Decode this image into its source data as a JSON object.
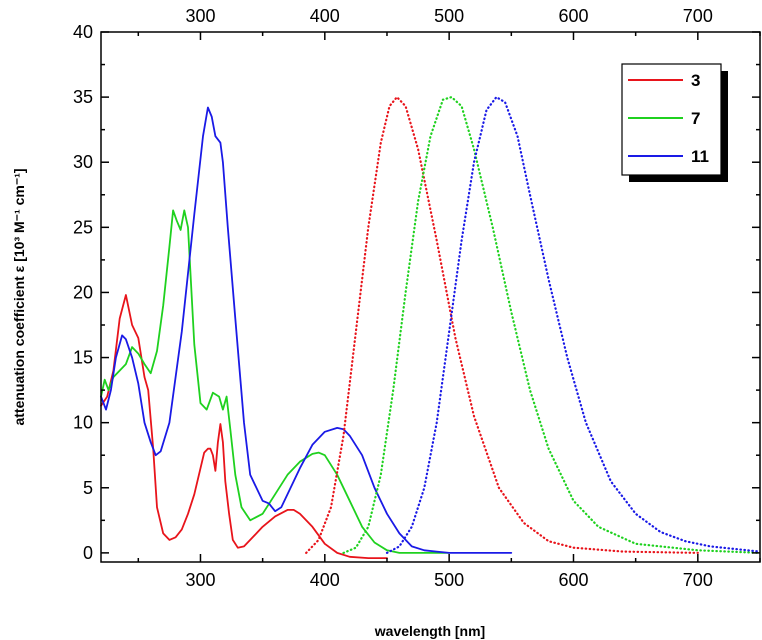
{
  "chart_data": {
    "type": "line",
    "title": "",
    "xlabel": "wavelength [nm]",
    "ylabel": "attenuation coefficient ε [10³ M⁻¹ cm⁻¹]",
    "xlim": [
      220,
      750
    ],
    "ylim": [
      -0.7,
      40
    ],
    "x_ticks": [
      300,
      400,
      500,
      600,
      700
    ],
    "top_x_ticks": [
      300,
      400,
      500,
      600,
      700
    ],
    "y_ticks": [
      0,
      5,
      10,
      15,
      20,
      25,
      30,
      35,
      40
    ],
    "grid": false,
    "legend_position": "top-right",
    "series": [
      {
        "name": "3",
        "kind": "absorption",
        "style": "solid",
        "color": "#e8141b",
        "points": [
          [
            220,
            11.3
          ],
          [
            225,
            12.0
          ],
          [
            230,
            14.0
          ],
          [
            235,
            18.0
          ],
          [
            240,
            19.8
          ],
          [
            245,
            17.5
          ],
          [
            250,
            16.5
          ],
          [
            255,
            13.5
          ],
          [
            258,
            12.5
          ],
          [
            262,
            8.0
          ],
          [
            265,
            3.5
          ],
          [
            270,
            1.5
          ],
          [
            275,
            1.0
          ],
          [
            280,
            1.2
          ],
          [
            285,
            1.8
          ],
          [
            290,
            3.0
          ],
          [
            295,
            4.5
          ],
          [
            300,
            6.5
          ],
          [
            303,
            7.7
          ],
          [
            306,
            8.0
          ],
          [
            308,
            8.0
          ],
          [
            310,
            7.5
          ],
          [
            312,
            6.3
          ],
          [
            314,
            8.5
          ],
          [
            316,
            9.9
          ],
          [
            318,
            8.5
          ],
          [
            320,
            5.5
          ],
          [
            323,
            3.0
          ],
          [
            326,
            1.0
          ],
          [
            330,
            0.4
          ],
          [
            335,
            0.5
          ],
          [
            340,
            1.0
          ],
          [
            350,
            2.0
          ],
          [
            360,
            2.8
          ],
          [
            370,
            3.3
          ],
          [
            375,
            3.3
          ],
          [
            380,
            3.0
          ],
          [
            390,
            2.0
          ],
          [
            400,
            0.7
          ],
          [
            410,
            0.0
          ],
          [
            420,
            -0.3
          ],
          [
            435,
            -0.4
          ],
          [
            450,
            -0.4
          ]
        ]
      },
      {
        "name": "7",
        "kind": "absorption",
        "style": "solid",
        "color": "#1fd11f",
        "points": [
          [
            220,
            12.0
          ],
          [
            223,
            13.3
          ],
          [
            226,
            12.5
          ],
          [
            230,
            13.5
          ],
          [
            240,
            14.5
          ],
          [
            245,
            15.8
          ],
          [
            250,
            15.3
          ],
          [
            255,
            14.5
          ],
          [
            260,
            13.8
          ],
          [
            265,
            15.5
          ],
          [
            270,
            19.0
          ],
          [
            275,
            23.5
          ],
          [
            278,
            26.3
          ],
          [
            281,
            25.5
          ],
          [
            284,
            24.8
          ],
          [
            287,
            26.3
          ],
          [
            290,
            25.0
          ],
          [
            295,
            16.0
          ],
          [
            300,
            11.5
          ],
          [
            305,
            11.0
          ],
          [
            310,
            12.3
          ],
          [
            315,
            12.0
          ],
          [
            318,
            11.0
          ],
          [
            321,
            12.0
          ],
          [
            324,
            9.5
          ],
          [
            328,
            6.0
          ],
          [
            333,
            3.5
          ],
          [
            340,
            2.5
          ],
          [
            350,
            3.0
          ],
          [
            360,
            4.5
          ],
          [
            370,
            6.0
          ],
          [
            380,
            7.0
          ],
          [
            390,
            7.6
          ],
          [
            395,
            7.7
          ],
          [
            400,
            7.5
          ],
          [
            410,
            6.0
          ],
          [
            420,
            4.0
          ],
          [
            430,
            2.0
          ],
          [
            440,
            0.8
          ],
          [
            450,
            0.2
          ],
          [
            460,
            0.0
          ],
          [
            500,
            0.0
          ]
        ]
      },
      {
        "name": "11",
        "kind": "absorption",
        "style": "solid",
        "color": "#1a1ae6",
        "points": [
          [
            220,
            12.0
          ],
          [
            224,
            11.0
          ],
          [
            228,
            12.5
          ],
          [
            232,
            15.0
          ],
          [
            237,
            16.7
          ],
          [
            240,
            16.4
          ],
          [
            245,
            15.0
          ],
          [
            250,
            13.0
          ],
          [
            255,
            10.0
          ],
          [
            260,
            8.5
          ],
          [
            264,
            7.5
          ],
          [
            268,
            7.8
          ],
          [
            275,
            10.0
          ],
          [
            285,
            17.0
          ],
          [
            295,
            26.0
          ],
          [
            302,
            32.0
          ],
          [
            306,
            34.2
          ],
          [
            309,
            33.5
          ],
          [
            312,
            32.0
          ],
          [
            316,
            31.5
          ],
          [
            318,
            30.0
          ],
          [
            322,
            25.0
          ],
          [
            328,
            18.0
          ],
          [
            335,
            10.0
          ],
          [
            340,
            6.0
          ],
          [
            345,
            5.0
          ],
          [
            350,
            4.0
          ],
          [
            355,
            3.8
          ],
          [
            360,
            3.2
          ],
          [
            365,
            3.5
          ],
          [
            370,
            4.5
          ],
          [
            380,
            6.5
          ],
          [
            390,
            8.3
          ],
          [
            400,
            9.3
          ],
          [
            410,
            9.6
          ],
          [
            415,
            9.5
          ],
          [
            420,
            9.0
          ],
          [
            430,
            7.5
          ],
          [
            440,
            5.0
          ],
          [
            450,
            3.0
          ],
          [
            460,
            1.5
          ],
          [
            470,
            0.5
          ],
          [
            480,
            0.2
          ],
          [
            490,
            0.1
          ],
          [
            500,
            0.0
          ],
          [
            550,
            0.0
          ]
        ]
      },
      {
        "name": "3",
        "kind": "emission",
        "style": "dotted",
        "color": "#e8141b",
        "points": [
          [
            385,
            0.0
          ],
          [
            395,
            1.0
          ],
          [
            405,
            3.5
          ],
          [
            415,
            9.0
          ],
          [
            425,
            17.0
          ],
          [
            435,
            25.0
          ],
          [
            445,
            31.5
          ],
          [
            452,
            34.3
          ],
          [
            458,
            35.0
          ],
          [
            465,
            34.3
          ],
          [
            475,
            31.0
          ],
          [
            490,
            24.0
          ],
          [
            505,
            16.5
          ],
          [
            520,
            10.5
          ],
          [
            540,
            5.0
          ],
          [
            560,
            2.3
          ],
          [
            580,
            0.9
          ],
          [
            600,
            0.4
          ],
          [
            640,
            0.1
          ],
          [
            700,
            0.0
          ]
        ]
      },
      {
        "name": "7",
        "kind": "emission",
        "style": "dotted",
        "color": "#1fd11f",
        "points": [
          [
            415,
            0.0
          ],
          [
            425,
            0.4
          ],
          [
            435,
            2.0
          ],
          [
            445,
            6.0
          ],
          [
            455,
            12.5
          ],
          [
            465,
            20.0
          ],
          [
            475,
            27.0
          ],
          [
            485,
            32.0
          ],
          [
            495,
            34.8
          ],
          [
            502,
            35.0
          ],
          [
            510,
            34.3
          ],
          [
            520,
            31.0
          ],
          [
            535,
            25.0
          ],
          [
            550,
            18.5
          ],
          [
            565,
            12.5
          ],
          [
            580,
            8.0
          ],
          [
            600,
            4.0
          ],
          [
            620,
            2.0
          ],
          [
            650,
            0.7
          ],
          [
            700,
            0.2
          ],
          [
            750,
            0.0
          ]
        ]
      },
      {
        "name": "11",
        "kind": "emission",
        "style": "dotted",
        "color": "#1a1ae6",
        "points": [
          [
            450,
            0.0
          ],
          [
            460,
            0.5
          ],
          [
            470,
            2.0
          ],
          [
            480,
            5.0
          ],
          [
            490,
            10.0
          ],
          [
            500,
            17.0
          ],
          [
            510,
            24.0
          ],
          [
            520,
            30.0
          ],
          [
            530,
            34.0
          ],
          [
            538,
            35.0
          ],
          [
            545,
            34.6
          ],
          [
            555,
            32.0
          ],
          [
            565,
            27.5
          ],
          [
            580,
            21.0
          ],
          [
            595,
            15.0
          ],
          [
            610,
            10.0
          ],
          [
            630,
            5.5
          ],
          [
            650,
            3.0
          ],
          [
            670,
            1.6
          ],
          [
            690,
            0.9
          ],
          [
            710,
            0.5
          ],
          [
            730,
            0.3
          ],
          [
            750,
            0.1
          ]
        ]
      }
    ]
  },
  "legend": {
    "items": [
      {
        "label": "3",
        "color": "#e8141b"
      },
      {
        "label": "7",
        "color": "#1fd11f"
      },
      {
        "label": "11",
        "color": "#1a1ae6"
      }
    ]
  }
}
